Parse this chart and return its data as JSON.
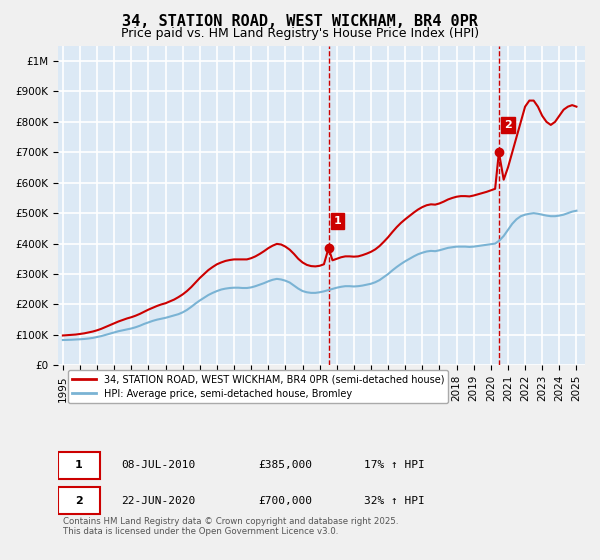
{
  "title": "34, STATION ROAD, WEST WICKHAM, BR4 0PR",
  "subtitle": "Price paid vs. HM Land Registry's House Price Index (HPI)",
  "title_fontsize": 11,
  "subtitle_fontsize": 9,
  "ylabel_ticks": [
    "£0",
    "£100K",
    "£200K",
    "£300K",
    "£400K",
    "£500K",
    "£600K",
    "£700K",
    "£800K",
    "£900K",
    "£1M"
  ],
  "ytick_values": [
    0,
    100000,
    200000,
    300000,
    400000,
    500000,
    600000,
    700000,
    800000,
    900000,
    1000000
  ],
  "ylim": [
    0,
    1050000
  ],
  "xlim_start": 1995,
  "xlim_end": 2025.5,
  "background_color": "#dce9f5",
  "plot_bg_color": "#dce9f5",
  "grid_color": "#ffffff",
  "red_line_color": "#cc0000",
  "blue_line_color": "#7ab3d4",
  "dashed_line_color": "#cc0000",
  "marker1_x": 2010.52,
  "marker1_y": 385000,
  "marker2_x": 2020.47,
  "marker2_y": 700000,
  "annotation1_label": "1",
  "annotation2_label": "2",
  "legend_label_red": "34, STATION ROAD, WEST WICKHAM, BR4 0PR (semi-detached house)",
  "legend_label_blue": "HPI: Average price, semi-detached house, Bromley",
  "table_row1": [
    "1",
    "08-JUL-2010",
    "£385,000",
    "17% ↑ HPI"
  ],
  "table_row2": [
    "2",
    "22-JUN-2020",
    "£700,000",
    "32% ↑ HPI"
  ],
  "footnote": "Contains HM Land Registry data © Crown copyright and database right 2025.\nThis data is licensed under the Open Government Licence v3.0.",
  "hpi_data_x": [
    1995.0,
    1995.25,
    1995.5,
    1995.75,
    1996.0,
    1996.25,
    1996.5,
    1996.75,
    1997.0,
    1997.25,
    1997.5,
    1997.75,
    1998.0,
    1998.25,
    1998.5,
    1998.75,
    1999.0,
    1999.25,
    1999.5,
    1999.75,
    2000.0,
    2000.25,
    2000.5,
    2000.75,
    2001.0,
    2001.25,
    2001.5,
    2001.75,
    2002.0,
    2002.25,
    2002.5,
    2002.75,
    2003.0,
    2003.25,
    2003.5,
    2003.75,
    2004.0,
    2004.25,
    2004.5,
    2004.75,
    2005.0,
    2005.25,
    2005.5,
    2005.75,
    2006.0,
    2006.25,
    2006.5,
    2006.75,
    2007.0,
    2007.25,
    2007.5,
    2007.75,
    2008.0,
    2008.25,
    2008.5,
    2008.75,
    2009.0,
    2009.25,
    2009.5,
    2009.75,
    2010.0,
    2010.25,
    2010.5,
    2010.75,
    2011.0,
    2011.25,
    2011.5,
    2011.75,
    2012.0,
    2012.25,
    2012.5,
    2012.75,
    2013.0,
    2013.25,
    2013.5,
    2013.75,
    2014.0,
    2014.25,
    2014.5,
    2014.75,
    2015.0,
    2015.25,
    2015.5,
    2015.75,
    2016.0,
    2016.25,
    2016.5,
    2016.75,
    2017.0,
    2017.25,
    2017.5,
    2017.75,
    2018.0,
    2018.25,
    2018.5,
    2018.75,
    2019.0,
    2019.25,
    2019.5,
    2019.75,
    2020.0,
    2020.25,
    2020.5,
    2020.75,
    2021.0,
    2021.25,
    2021.5,
    2021.75,
    2022.0,
    2022.25,
    2022.5,
    2022.75,
    2023.0,
    2023.25,
    2023.5,
    2023.75,
    2024.0,
    2024.25,
    2024.5,
    2024.75,
    2025.0
  ],
  "hpi_data_y": [
    83000,
    83500,
    84000,
    84800,
    85500,
    86500,
    88000,
    90000,
    93000,
    96000,
    100000,
    104000,
    108000,
    112000,
    115000,
    118000,
    121000,
    125000,
    130000,
    136000,
    141000,
    146000,
    150000,
    153000,
    156000,
    160000,
    164000,
    168000,
    174000,
    182000,
    192000,
    203000,
    213000,
    222000,
    231000,
    238000,
    244000,
    249000,
    252000,
    254000,
    255000,
    255000,
    254000,
    254000,
    256000,
    260000,
    265000,
    270000,
    276000,
    281000,
    284000,
    282000,
    278000,
    272000,
    262000,
    252000,
    244000,
    240000,
    238000,
    238000,
    240000,
    243000,
    247000,
    251000,
    255000,
    258000,
    260000,
    260000,
    259000,
    260000,
    262000,
    265000,
    268000,
    273000,
    280000,
    290000,
    300000,
    312000,
    323000,
    333000,
    342000,
    350000,
    358000,
    365000,
    370000,
    374000,
    376000,
    375000,
    378000,
    382000,
    386000,
    388000,
    390000,
    390000,
    390000,
    389000,
    390000,
    392000,
    394000,
    396000,
    398000,
    400000,
    410000,
    425000,
    445000,
    465000,
    480000,
    490000,
    495000,
    498000,
    500000,
    498000,
    495000,
    492000,
    490000,
    490000,
    492000,
    495000,
    500000,
    505000,
    508000
  ],
  "red_data_x": [
    1995.0,
    1995.25,
    1995.5,
    1995.75,
    1996.0,
    1996.25,
    1996.5,
    1996.75,
    1997.0,
    1997.25,
    1997.5,
    1997.75,
    1998.0,
    1998.25,
    1998.5,
    1998.75,
    1999.0,
    1999.25,
    1999.5,
    1999.75,
    2000.0,
    2000.25,
    2000.5,
    2000.75,
    2001.0,
    2001.25,
    2001.5,
    2001.75,
    2002.0,
    2002.25,
    2002.5,
    2002.75,
    2003.0,
    2003.25,
    2003.5,
    2003.75,
    2004.0,
    2004.25,
    2004.5,
    2004.75,
    2005.0,
    2005.25,
    2005.5,
    2005.75,
    2006.0,
    2006.25,
    2006.5,
    2006.75,
    2007.0,
    2007.25,
    2007.5,
    2007.75,
    2008.0,
    2008.25,
    2008.5,
    2008.75,
    2009.0,
    2009.25,
    2009.5,
    2009.75,
    2010.0,
    2010.25,
    2010.52,
    2010.75,
    2011.0,
    2011.25,
    2011.5,
    2011.75,
    2012.0,
    2012.25,
    2012.5,
    2012.75,
    2013.0,
    2013.25,
    2013.5,
    2013.75,
    2014.0,
    2014.25,
    2014.5,
    2014.75,
    2015.0,
    2015.25,
    2015.5,
    2015.75,
    2016.0,
    2016.25,
    2016.5,
    2016.75,
    2017.0,
    2017.25,
    2017.5,
    2017.75,
    2018.0,
    2018.25,
    2018.5,
    2018.75,
    2019.0,
    2019.25,
    2019.5,
    2019.75,
    2020.0,
    2020.25,
    2020.47,
    2020.75,
    2021.0,
    2021.25,
    2021.5,
    2021.75,
    2022.0,
    2022.25,
    2022.5,
    2022.75,
    2023.0,
    2023.25,
    2023.5,
    2023.75,
    2024.0,
    2024.25,
    2024.5,
    2024.75,
    2025.0
  ],
  "red_data_y": [
    98000,
    99000,
    100000,
    101000,
    103000,
    105000,
    108000,
    111000,
    115000,
    120000,
    126000,
    132000,
    138000,
    144000,
    149000,
    154000,
    158000,
    163000,
    169000,
    176000,
    183000,
    189000,
    195000,
    200000,
    204000,
    210000,
    216000,
    224000,
    233000,
    244000,
    257000,
    272000,
    287000,
    300000,
    313000,
    323000,
    332000,
    338000,
    343000,
    346000,
    348000,
    348000,
    348000,
    348000,
    352000,
    358000,
    366000,
    375000,
    385000,
    393000,
    399000,
    397000,
    390000,
    380000,
    366000,
    350000,
    338000,
    330000,
    326000,
    325000,
    327000,
    332000,
    385000,
    345000,
    350000,
    355000,
    358000,
    358000,
    357000,
    358000,
    362000,
    367000,
    373000,
    381000,
    392000,
    406000,
    421000,
    438000,
    454000,
    468000,
    480000,
    491000,
    502000,
    512000,
    520000,
    526000,
    529000,
    528000,
    532000,
    538000,
    545000,
    550000,
    554000,
    556000,
    556000,
    555000,
    558000,
    562000,
    566000,
    570000,
    575000,
    580000,
    700000,
    610000,
    650000,
    700000,
    750000,
    800000,
    850000,
    870000,
    870000,
    850000,
    820000,
    800000,
    790000,
    800000,
    820000,
    840000,
    850000,
    855000,
    850000
  ]
}
